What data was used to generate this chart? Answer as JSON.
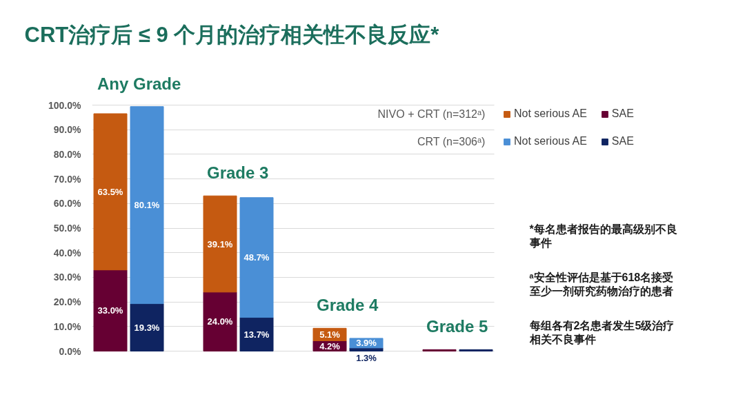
{
  "chart_data": {
    "type": "bar",
    "title": "CRT治疗后 ≤ 9 个月的治疗相关性不良反应*",
    "categories": [
      null,
      null,
      null,
      null,
      null,
      null,
      null,
      null,
      null,
      null,
      null
    ],
    "stacked": true,
    "series": [
      {
        "name": "SAE",
        "color": "#660033",
        "values": [
          33.0,
          null,
          null,
          24.0,
          null,
          null,
          4.2,
          null,
          null,
          0.6,
          null
        ],
        "value_labels": [
          "33.0%",
          null,
          null,
          "24.0%",
          null,
          null,
          "4.2%",
          null,
          null,
          null,
          null
        ]
      },
      {
        "name": "Not serious AE",
        "color": "#C55A11",
        "values": [
          63.5,
          null,
          null,
          39.1,
          null,
          null,
          5.1,
          null,
          null,
          null,
          null
        ],
        "value_labels": [
          "63.5%",
          null,
          null,
          "39.1%",
          null,
          null,
          "5.1%",
          null,
          null,
          null,
          null
        ]
      },
      {
        "name": "SAE",
        "color": "#0F2461",
        "values": [
          null,
          19.3,
          null,
          null,
          13.7,
          null,
          null,
          1.3,
          null,
          null,
          0.6
        ],
        "value_labels": [
          null,
          "19.3%",
          null,
          null,
          "13.7%",
          null,
          null,
          "1.3%",
          null,
          null,
          null
        ]
      },
      {
        "name": "Not serious AE",
        "color": "#4A8FD6",
        "values": [
          null,
          80.1,
          null,
          null,
          48.7,
          null,
          null,
          3.9,
          null,
          null,
          null
        ],
        "value_labels": [
          null,
          "80.1%",
          null,
          null,
          "48.7%",
          null,
          null,
          "3.9%",
          null,
          null,
          null
        ]
      }
    ],
    "ylim": [
      0,
      100
    ],
    "yticks": [
      {
        "value": 0,
        "label": "0.0%"
      },
      {
        "value": 10,
        "label": "10.0%"
      },
      {
        "value": 20,
        "label": "20.0%"
      },
      {
        "value": 30,
        "label": "30.0%"
      },
      {
        "value": 40,
        "label": "40.0%"
      },
      {
        "value": 50,
        "label": "50.0%"
      },
      {
        "value": 60,
        "label": "60.0%"
      },
      {
        "value": 70,
        "label": "70.0%"
      },
      {
        "value": 80,
        "label": "80.0%"
      },
      {
        "value": 90,
        "label": "90.0%"
      },
      {
        "value": 100,
        "label": "100.0%"
      }
    ],
    "grid": "y",
    "legend": "top right",
    "tick_labels": "y",
    "annotations": [
      "Any Grade",
      "Grade 3",
      "Grade 4",
      "Grade 5",
      "NIVO + CRT (n=312ᵃ)",
      "CRT (n=306ᵃ)",
      "*每名患者报告的最高级别不良事件",
      "ᵃ安全性评估是基于618名接受至少一剂研究药物治疗的患者",
      "每组各有2名患者发生5级治疗相关不良事件"
    ]
  }
}
